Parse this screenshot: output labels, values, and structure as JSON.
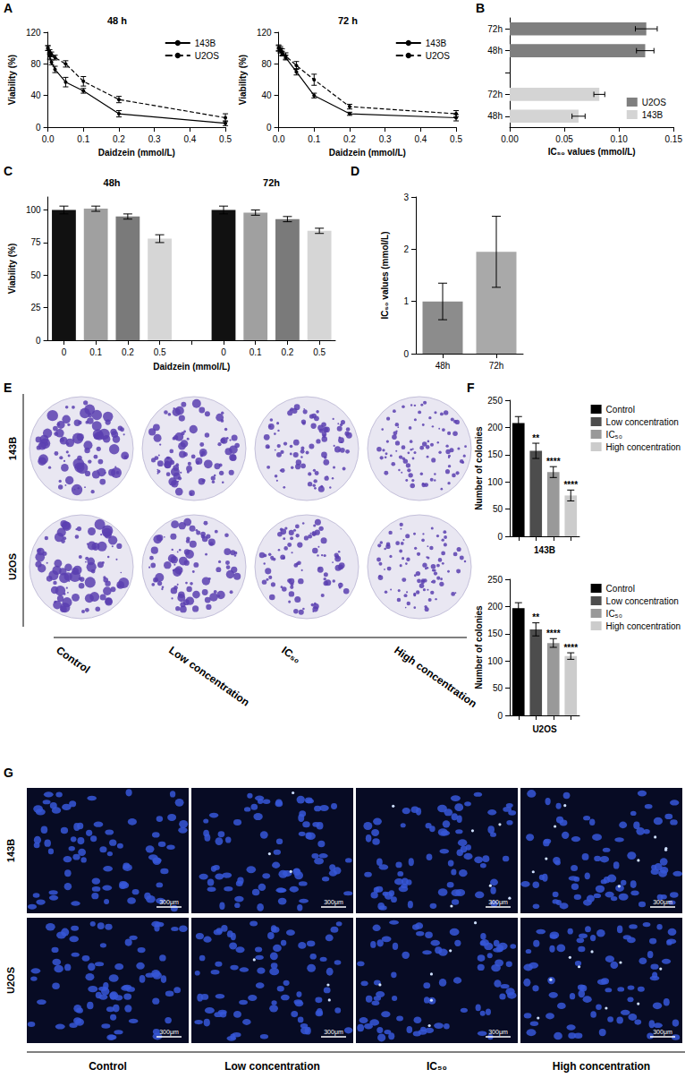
{
  "panel_labels": [
    "A",
    "B",
    "C",
    "D",
    "E",
    "F",
    "G"
  ],
  "chart_data": [
    {
      "type": "line",
      "title": "48 h",
      "xlabel": "Daidzein (mmol/L)",
      "ylabel": "Viability (%)",
      "x": [
        0,
        0.005,
        0.01,
        0.02,
        0.05,
        0.1,
        0.2,
        0.5
      ],
      "xlim": [
        0,
        0.5
      ],
      "xticks": [
        {
          "value": 0,
          "label": "0.0"
        },
        0.1,
        0.2,
        0.3,
        0.4,
        0.5
      ],
      "ylim": [
        0,
        120
      ],
      "yticks": [
        0,
        40,
        80,
        120
      ],
      "grid": false,
      "legend": "top-right",
      "series": [
        {
          "name": "143B",
          "color": "#000000",
          "line_style": "solid",
          "marker": "circle",
          "values": [
            100,
            90,
            82,
            73,
            57,
            46,
            17,
            5
          ],
          "errors": [
            3,
            4,
            3,
            4,
            6,
            3,
            4,
            3
          ]
        },
        {
          "name": "U2OS",
          "color": "#000000",
          "line_style": "dashed",
          "marker": "circle",
          "values": [
            100,
            95,
            92,
            88,
            80,
            58,
            35,
            12
          ],
          "errors": [
            3,
            3,
            3,
            3,
            4,
            6,
            4,
            5
          ]
        }
      ]
    },
    {
      "type": "line",
      "title": "72 h",
      "xlabel": "Daidzein (mmol/L)",
      "ylabel": "Viability (%)",
      "x": [
        0,
        0.005,
        0.01,
        0.02,
        0.05,
        0.1,
        0.2,
        0.5
      ],
      "xlim": [
        0,
        0.5
      ],
      "xticks": [
        {
          "value": 0,
          "label": "0.0"
        },
        0.1,
        0.2,
        0.3,
        0.4,
        0.5
      ],
      "ylim": [
        0,
        120
      ],
      "yticks": [
        0,
        40,
        80,
        120
      ],
      "grid": false,
      "legend": "top-right",
      "series": [
        {
          "name": "143B",
          "color": "#000000",
          "line_style": "solid",
          "marker": "circle",
          "values": [
            100,
            97,
            93,
            88,
            70,
            40,
            17,
            12
          ],
          "errors": [
            3,
            3,
            3,
            3,
            4,
            3,
            2,
            4
          ]
        },
        {
          "name": "U2OS",
          "color": "#000000",
          "line_style": "dashed",
          "marker": "circle",
          "values": [
            100,
            98,
            95,
            90,
            78,
            60,
            26,
            17
          ],
          "errors": [
            4,
            4,
            4,
            4,
            5,
            7,
            3,
            4
          ]
        }
      ]
    },
    {
      "type": "bar",
      "orientation": "horizontal",
      "xlabel": "IC₅₀ values (mmol/L)",
      "categories": [
        "48h",
        "72h",
        null,
        "48h",
        "72h"
      ],
      "xlim": [
        0,
        0.15
      ],
      "xticks": [
        {
          "value": 0,
          "label": "0.00"
        },
        0.05,
        {
          "value": 0.1,
          "label": "0.10"
        },
        0.15
      ],
      "grid": false,
      "legend": "bottom-right",
      "series": [
        {
          "name": "U2OS",
          "color": "#7f7f7f",
          "values": [
            null,
            null,
            null,
            0.124,
            0.125
          ],
          "errors": [
            null,
            null,
            null,
            0.008,
            0.01
          ]
        },
        {
          "name": "143B",
          "color": "#d4d4d4",
          "values": [
            0.063,
            0.082,
            null,
            null,
            null
          ],
          "errors": [
            0.006,
            0.005,
            null,
            null,
            null
          ]
        }
      ]
    },
    {
      "type": "bar",
      "xlabel": "Daidzein (mmol/L)",
      "ylabel": "Viability (%)",
      "categories": [
        "0",
        "0.1",
        "0.2",
        "0.5",
        null,
        "0",
        "0.1",
        "0.2",
        "0.5"
      ],
      "group_labels": [
        "48h",
        "72h"
      ],
      "values": [
        100,
        101,
        95,
        78,
        null,
        100,
        98,
        93,
        84
      ],
      "errors": [
        3,
        2,
        2,
        3,
        null,
        3,
        2,
        2,
        2
      ],
      "colors": [
        "#111111",
        "#a0a0a0",
        "#7a7a7a",
        "#d6d6d6",
        null,
        "#111111",
        "#a0a0a0",
        "#7a7a7a",
        "#d6d6d6"
      ],
      "ylim": [
        0,
        110
      ],
      "yticks": [
        0,
        25,
        50,
        75,
        100
      ],
      "grid": false
    },
    {
      "type": "bar",
      "ylabel": "IC₅₀ values (mmol/L)",
      "categories": [
        "48h",
        "72h"
      ],
      "values": [
        1,
        1.95
      ],
      "errors": [
        0.35,
        0.68
      ],
      "colors": [
        "#8c8c8c",
        "#a9a9a9"
      ],
      "ylim": [
        0,
        3
      ],
      "yticks": [
        0,
        1,
        2,
        3
      ],
      "grid": false
    },
    {
      "type": "bar",
      "xlabel": "143B",
      "ylabel": "Number of colonies",
      "categories": [
        "Control",
        "Low concentration",
        "IC₅₀",
        "High concentration"
      ],
      "values": [
        208,
        157,
        118,
        75
      ],
      "errors": [
        12,
        14,
        10,
        10
      ],
      "annotations": [
        null,
        "**",
        "****",
        "****"
      ],
      "colors": [
        "#000000",
        "#4d4d4d",
        "#999999",
        "#cccccc"
      ],
      "ylim": [
        0,
        250
      ],
      "yticks": [
        0,
        50,
        100,
        150,
        200,
        250
      ],
      "grid": false,
      "legend": "right",
      "tick_labels": "y"
    },
    {
      "type": "bar",
      "xlabel": "U2OS",
      "ylabel": "Number of colonies",
      "categories": [
        "Control",
        "Low concentration",
        "IC₅₀",
        "High concentration"
      ],
      "values": [
        197,
        158,
        133,
        109
      ],
      "errors": [
        10,
        12,
        8,
        6
      ],
      "annotations": [
        null,
        "**",
        "****",
        "****"
      ],
      "colors": [
        "#000000",
        "#4d4d4d",
        "#999999",
        "#cccccc"
      ],
      "ylim": [
        0,
        250
      ],
      "yticks": [
        0,
        50,
        100,
        150,
        200,
        250
      ],
      "grid": false,
      "legend": "right",
      "tick_labels": "y"
    }
  ],
  "images": {
    "E": {
      "rows": [
        "143B",
        "U2OS"
      ],
      "columns": [
        "Control",
        "Low concentration",
        "IC₅₀",
        "High concentration"
      ]
    },
    "G": {
      "rows": [
        "143B",
        "U2OS"
      ],
      "columns": [
        "Control",
        "Low concentration",
        "IC₅₀",
        "High concentration"
      ],
      "scale_bar": "300μm"
    }
  }
}
